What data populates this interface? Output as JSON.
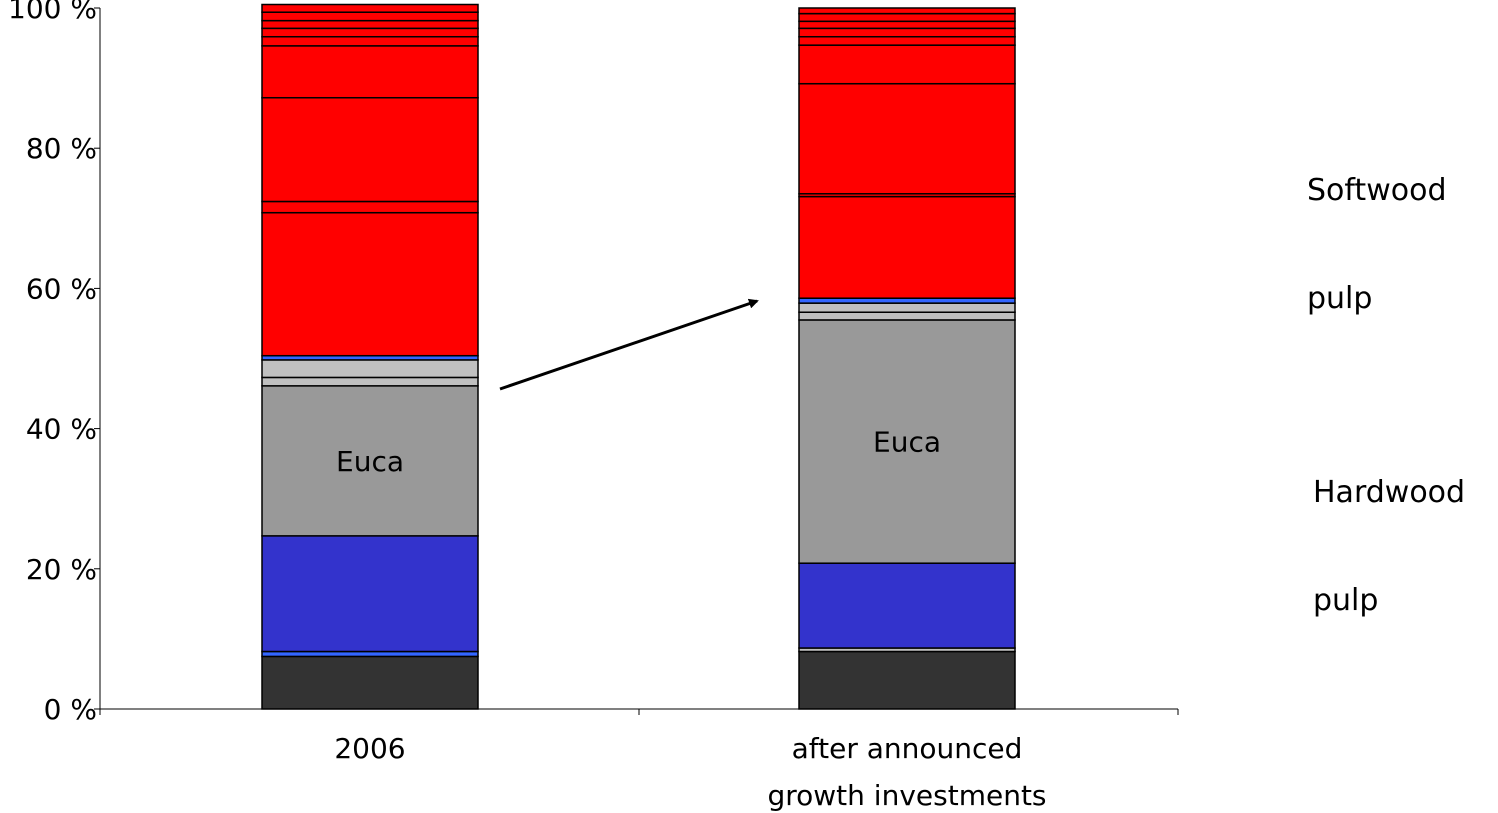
{
  "chart_data": {
    "type": "bar",
    "stacked": true,
    "normalized": true,
    "categories": [
      "2006",
      "after announced\ngrowth investments"
    ],
    "ylim": [
      0,
      100
    ],
    "yticks": [
      {
        "value": 0,
        "label": "0 %"
      },
      {
        "value": 20,
        "label": "20 %"
      },
      {
        "value": 40,
        "label": "40 %"
      },
      {
        "value": 60,
        "label": "60 %"
      },
      {
        "value": 80,
        "label": "80 %"
      },
      {
        "value": 100,
        "label": "100 %"
      }
    ],
    "title": "",
    "xlabel": "",
    "ylabel": "",
    "colors": {
      "dark": "#333333",
      "blue": "#3333cc",
      "light_blue": "#3366ff",
      "euca": "#999999",
      "light_gray": "#c0c0c0",
      "red": "#ff0000",
      "edge": "#000000"
    },
    "series_values": {
      "2006": [
        {
          "color": "dark",
          "value": 7.5
        },
        {
          "color": "light_blue",
          "value": 0.7
        },
        {
          "color": "blue",
          "value": 16.5
        },
        {
          "color": "euca",
          "value": 21.4,
          "label": "Euca"
        },
        {
          "color": "light_gray",
          "value": 1.2
        },
        {
          "color": "light_gray",
          "value": 2.5
        },
        {
          "color": "light_blue",
          "value": 0.6
        },
        {
          "color": "red",
          "value": 20.4
        },
        {
          "color": "red",
          "value": 1.6
        },
        {
          "color": "red",
          "value": 14.8
        },
        {
          "color": "red",
          "value": 7.4
        },
        {
          "color": "red",
          "value": 1.3
        },
        {
          "color": "red",
          "value": 1.2
        },
        {
          "color": "red",
          "value": 1.1
        },
        {
          "color": "red",
          "value": 1.2
        },
        {
          "color": "red",
          "value": 1.1
        }
      ],
      "after announced\ngrowth investments": [
        {
          "color": "dark",
          "value": 8.2
        },
        {
          "color": "light_gray",
          "value": 0.5
        },
        {
          "color": "blue",
          "value": 12.1
        },
        {
          "color": "euca",
          "value": 34.7,
          "label": "Euca"
        },
        {
          "color": "light_gray",
          "value": 1.1
        },
        {
          "color": "light_gray",
          "value": 1.3
        },
        {
          "color": "light_blue",
          "value": 0.7
        },
        {
          "color": "red",
          "value": 14.5
        },
        {
          "color": "red",
          "value": 0.4
        },
        {
          "color": "red",
          "value": 15.7
        },
        {
          "color": "red",
          "value": 5.5
        },
        {
          "color": "red",
          "value": 1.2
        },
        {
          "color": "red",
          "value": 1.2
        },
        {
          "color": "red",
          "value": 1.0
        },
        {
          "color": "red",
          "value": 1.1
        },
        {
          "color": "red",
          "value": 0.8
        }
      ]
    },
    "arrow": {
      "from": "2006",
      "to": "after announced\ngrowth investments",
      "direction": "up-right"
    }
  },
  "annotations": {
    "softwood": [
      "Softwood",
      "pulp"
    ],
    "hardwood": [
      "Hardwood",
      "pulp"
    ]
  }
}
